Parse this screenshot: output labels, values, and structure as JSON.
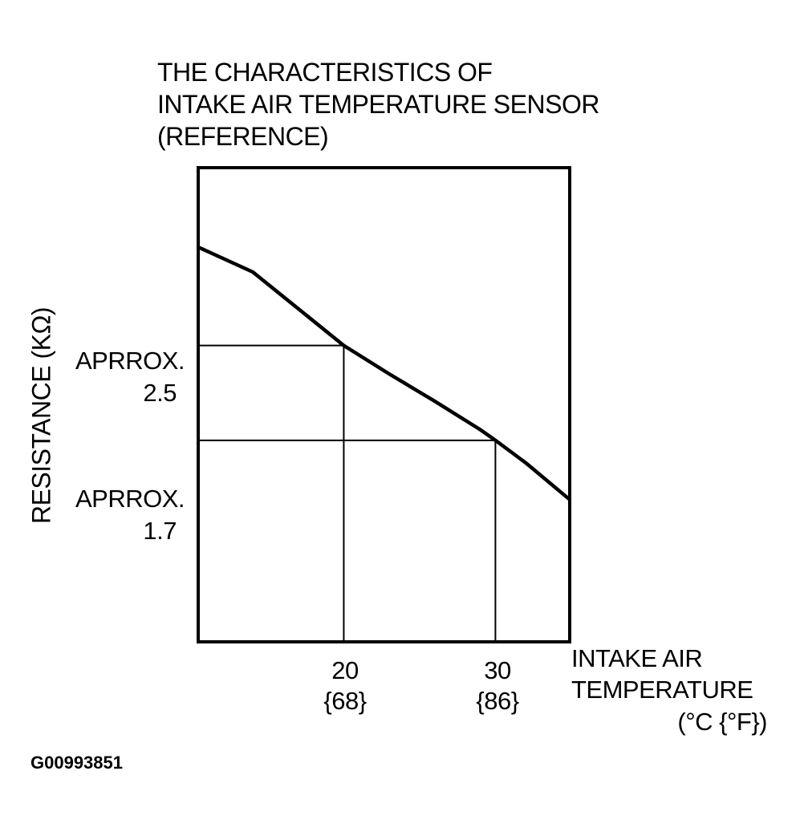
{
  "chart_data": {
    "type": "line",
    "title_lines": [
      "THE CHARACTERISTICS OF",
      "INTAKE AIR TEMPERATURE SENSOR",
      "(REFERENCE)"
    ],
    "ylabel": "RESISTANCE (KΩ)",
    "xlabel_lines": [
      "INTAKE AIR",
      "TEMPERATURE",
      "(°C {°F})"
    ],
    "x_ticks": [
      {
        "value": 20,
        "label": "20",
        "sublabel": "{68}"
      },
      {
        "value": 30,
        "label": "30",
        "sublabel": "{86}"
      }
    ],
    "y_ticks": [
      {
        "value": 2.5,
        "prefix": "APRROX.",
        "label": "2.5"
      },
      {
        "value": 1.7,
        "prefix": "APRROX.",
        "label": "1.7"
      }
    ],
    "xlim": [
      10.4,
      34.9
    ],
    "ylim": [
      0.0,
      4.0
    ],
    "grid": false,
    "series": [
      {
        "x": [
          10.4,
          14,
          17,
          20,
          23,
          26,
          29,
          30,
          32,
          34.9
        ],
        "y": [
          3.33,
          3.12,
          2.81,
          2.5,
          2.26,
          2.03,
          1.79,
          1.7,
          1.51,
          1.2
        ]
      }
    ],
    "reference_points": [
      {
        "x": 20,
        "y": 2.5
      },
      {
        "x": 30,
        "y": 1.7
      }
    ]
  },
  "figure_code": "G00993851"
}
